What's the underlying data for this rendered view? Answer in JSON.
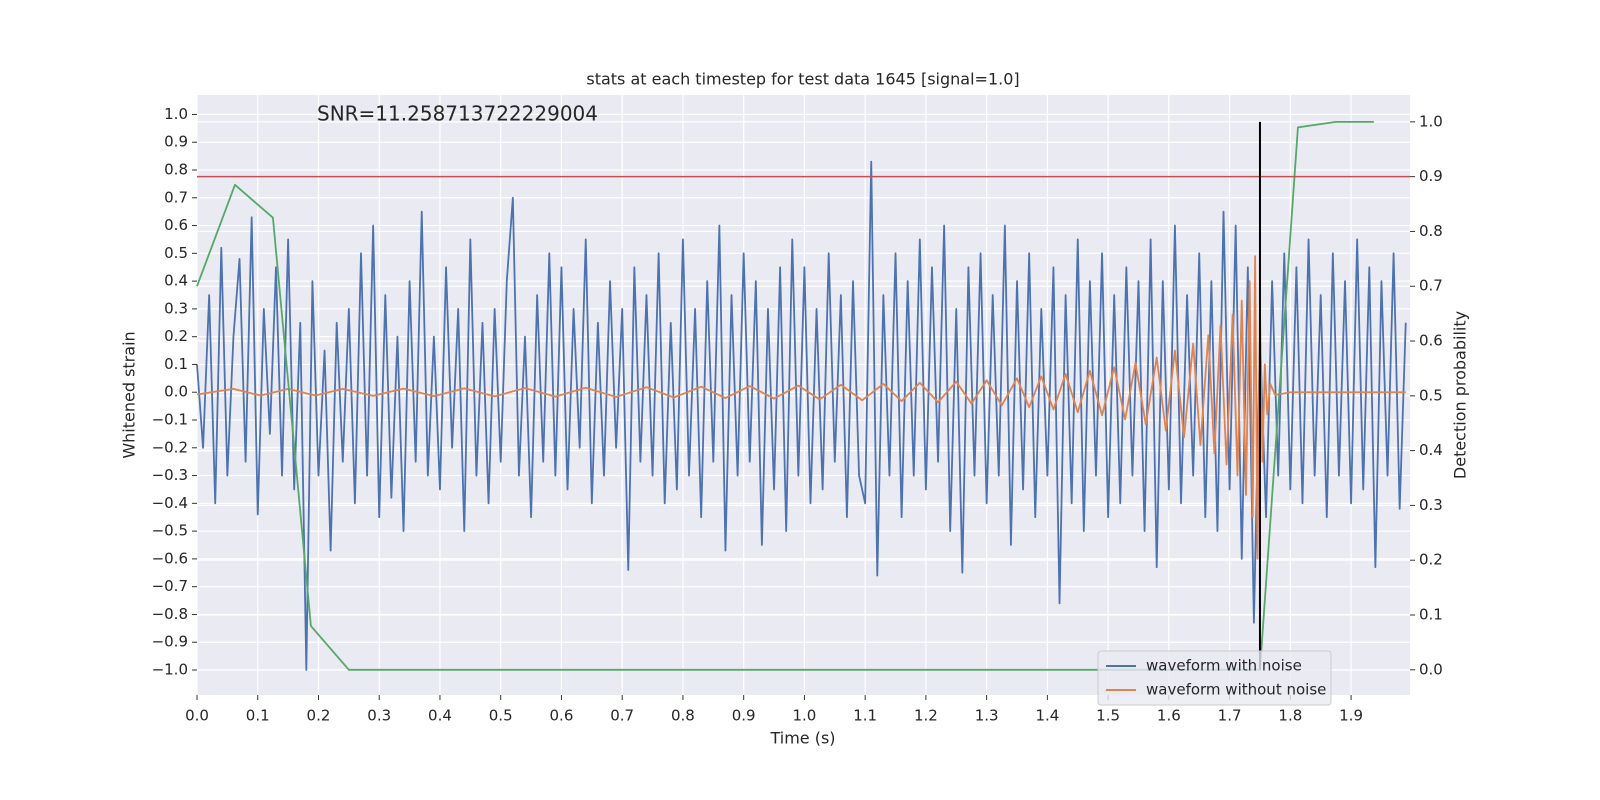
{
  "chart_data": {
    "type": "line",
    "title": "stats at each timestep for test data 1645 [signal=1.0]",
    "annotation": "SNR=11.258713722229004",
    "xlabel": "Time (s)",
    "ylabel": "Whitened strain",
    "y2label": "Detection probability",
    "grid": true,
    "legend": "lower right",
    "xlim": [
      0,
      1.997
    ],
    "ylim": [
      -1.09,
      1.07
    ],
    "y2lim": [
      -0.046,
      1.049
    ],
    "xticks": [
      {
        "value": 0,
        "label": "0.0"
      },
      {
        "value": 0.1,
        "label": "0.1"
      },
      {
        "value": 0.2,
        "label": "0.2"
      },
      {
        "value": 0.3,
        "label": "0.3"
      },
      {
        "value": 0.4,
        "label": "0.4"
      },
      {
        "value": 0.5,
        "label": "0.5"
      },
      {
        "value": 0.6,
        "label": "0.6"
      },
      {
        "value": 0.7,
        "label": "0.7"
      },
      {
        "value": 0.8,
        "label": "0.8"
      },
      {
        "value": 0.9,
        "label": "0.9"
      },
      {
        "value": 1,
        "label": "1.0"
      },
      {
        "value": 1.1,
        "label": "1.1"
      },
      {
        "value": 1.2,
        "label": "1.2"
      },
      {
        "value": 1.3,
        "label": "1.3"
      },
      {
        "value": 1.4,
        "label": "1.4"
      },
      {
        "value": 1.5,
        "label": "1.5"
      },
      {
        "value": 1.6,
        "label": "1.6"
      },
      {
        "value": 1.7,
        "label": "1.7"
      },
      {
        "value": 1.8,
        "label": "1.8"
      },
      {
        "value": 1.9,
        "label": "1.9"
      }
    ],
    "yticks": [
      {
        "value": -1,
        "label": "−1.0"
      },
      {
        "value": -0.9,
        "label": "−0.9"
      },
      {
        "value": -0.8,
        "label": "−0.8"
      },
      {
        "value": -0.7,
        "label": "−0.7"
      },
      {
        "value": -0.6,
        "label": "−0.6"
      },
      {
        "value": -0.5,
        "label": "−0.5"
      },
      {
        "value": -0.4,
        "label": "−0.4"
      },
      {
        "value": -0.3,
        "label": "−0.3"
      },
      {
        "value": -0.2,
        "label": "−0.2"
      },
      {
        "value": -0.1,
        "label": "−0.1"
      },
      {
        "value": 0,
        "label": "0.0"
      },
      {
        "value": 0.1,
        "label": "0.1"
      },
      {
        "value": 0.2,
        "label": "0.2"
      },
      {
        "value": 0.3,
        "label": "0.3"
      },
      {
        "value": 0.4,
        "label": "0.4"
      },
      {
        "value": 0.5,
        "label": "0.5"
      },
      {
        "value": 0.6,
        "label": "0.6"
      },
      {
        "value": 0.7,
        "label": "0.7"
      },
      {
        "value": 0.8,
        "label": "0.8"
      },
      {
        "value": 0.9,
        "label": "0.9"
      },
      {
        "value": 1,
        "label": "1.0"
      }
    ],
    "y2ticks": [
      {
        "value": 0,
        "label": "0.0"
      },
      {
        "value": 0.1,
        "label": "0.1"
      },
      {
        "value": 0.2,
        "label": "0.2"
      },
      {
        "value": 0.3,
        "label": "0.3"
      },
      {
        "value": 0.4,
        "label": "0.4"
      },
      {
        "value": 0.5,
        "label": "0.5"
      },
      {
        "value": 0.6,
        "label": "0.6"
      },
      {
        "value": 0.7,
        "label": "0.7"
      },
      {
        "value": 0.8,
        "label": "0.8"
      },
      {
        "value": 0.9,
        "label": "0.9"
      },
      {
        "value": 1,
        "label": "1.0"
      }
    ],
    "series": [
      {
        "name": "waveform with noise",
        "color": "#4c72b0",
        "x": [
          0,
          0.01,
          0.02,
          0.03,
          0.04,
          0.05,
          0.06,
          0.07,
          0.08,
          0.09,
          0.1,
          0.11,
          0.12,
          0.13,
          0.14,
          0.15,
          0.16,
          0.17,
          0.18,
          0.19,
          0.2,
          0.21,
          0.22,
          0.23,
          0.24,
          0.25,
          0.26,
          0.27,
          0.28,
          0.29,
          0.3,
          0.31,
          0.32,
          0.33,
          0.34,
          0.35,
          0.36,
          0.37,
          0.38,
          0.39,
          0.4,
          0.41,
          0.42,
          0.43,
          0.44,
          0.45,
          0.46,
          0.47,
          0.48,
          0.49,
          0.5,
          0.51,
          0.52,
          0.53,
          0.54,
          0.55,
          0.56,
          0.57,
          0.58,
          0.59,
          0.6,
          0.61,
          0.62,
          0.63,
          0.64,
          0.65,
          0.66,
          0.67,
          0.68,
          0.69,
          0.7,
          0.71,
          0.72,
          0.73,
          0.74,
          0.75,
          0.76,
          0.77,
          0.78,
          0.79,
          0.8,
          0.81,
          0.82,
          0.83,
          0.84,
          0.85,
          0.86,
          0.87,
          0.88,
          0.89,
          0.9,
          0.91,
          0.92,
          0.93,
          0.94,
          0.95,
          0.96,
          0.97,
          0.98,
          0.99,
          1,
          1.01,
          1.02,
          1.03,
          1.04,
          1.05,
          1.06,
          1.07,
          1.08,
          1.09,
          1.1,
          1.11,
          1.12,
          1.13,
          1.14,
          1.15,
          1.16,
          1.17,
          1.18,
          1.19,
          1.2,
          1.21,
          1.22,
          1.23,
          1.24,
          1.25,
          1.26,
          1.27,
          1.28,
          1.29,
          1.3,
          1.31,
          1.32,
          1.33,
          1.34,
          1.35,
          1.36,
          1.37,
          1.38,
          1.39,
          1.4,
          1.41,
          1.42,
          1.43,
          1.44,
          1.45,
          1.46,
          1.47,
          1.48,
          1.49,
          1.5,
          1.51,
          1.52,
          1.53,
          1.54,
          1.55,
          1.56,
          1.57,
          1.58,
          1.59,
          1.6,
          1.61,
          1.62,
          1.63,
          1.64,
          1.65,
          1.66,
          1.67,
          1.68,
          1.69,
          1.7,
          1.71,
          1.72,
          1.73,
          1.74,
          1.75,
          1.76,
          1.77,
          1.78,
          1.79,
          1.8,
          1.81,
          1.82,
          1.83,
          1.84,
          1.85,
          1.86,
          1.87,
          1.88,
          1.89,
          1.9,
          1.91,
          1.92,
          1.93,
          1.94,
          1.95,
          1.96,
          1.97,
          1.98,
          1.99
        ],
        "values": [
          0.1,
          -0.2,
          0.35,
          -0.4,
          0.52,
          -0.3,
          0.2,
          0.48,
          -0.25,
          0.63,
          -0.44,
          0.3,
          -0.15,
          0.45,
          -0.3,
          0.55,
          -0.35,
          0.25,
          -1.0,
          0.4,
          -0.3,
          0.15,
          -0.57,
          0.25,
          -0.25,
          0.3,
          -0.4,
          0.5,
          -0.3,
          0.6,
          -0.45,
          0.35,
          -0.38,
          0.2,
          -0.5,
          0.4,
          -0.25,
          0.65,
          -0.3,
          0.2,
          -0.35,
          0.45,
          -0.2,
          0.3,
          -0.5,
          0.55,
          -0.3,
          0.25,
          -0.4,
          0.3,
          -0.25,
          0.4,
          0.7,
          -0.3,
          0.2,
          -0.45,
          0.35,
          -0.25,
          0.5,
          -0.3,
          0.45,
          -0.35,
          0.3,
          -0.2,
          0.55,
          -0.4,
          0.25,
          -0.3,
          0.4,
          -0.2,
          0.3,
          -0.64,
          0.45,
          -0.25,
          0.35,
          -0.3,
          0.5,
          -0.4,
          0.25,
          -0.35,
          0.55,
          -0.3,
          0.3,
          -0.45,
          0.4,
          -0.25,
          0.6,
          -0.57,
          0.35,
          -0.3,
          0.5,
          -0.25,
          0.4,
          -0.55,
          0.3,
          -0.35,
          0.45,
          -0.5,
          0.55,
          -0.3,
          0.45,
          -0.4,
          0.3,
          -0.35,
          0.5,
          -0.25,
          0.35,
          -0.45,
          0.4,
          -0.3,
          -0.4,
          0.83,
          -0.66,
          0.35,
          -0.3,
          0.5,
          -0.45,
          0.4,
          -0.3,
          0.55,
          -0.35,
          0.45,
          -0.25,
          0.6,
          -0.5,
          0.3,
          -0.65,
          0.45,
          -0.3,
          0.5,
          -0.4,
          0.35,
          -0.3,
          0.6,
          -0.55,
          0.4,
          -0.35,
          0.5,
          -0.45,
          0.3,
          -0.3,
          0.45,
          -0.76,
          0.35,
          -0.4,
          0.55,
          -0.5,
          0.4,
          -0.3,
          0.5,
          -0.45,
          0.35,
          -0.4,
          0.45,
          -0.3,
          0.4,
          -0.5,
          0.55,
          -0.63,
          0.4,
          -0.35,
          0.6,
          -0.4,
          0.35,
          -0.3,
          0.5,
          -0.45,
          0.4,
          -0.5,
          0.65,
          -0.35,
          0.6,
          -0.6,
          0.45,
          -0.83,
          0.2,
          -0.45,
          0.4,
          -0.3,
          0.5,
          -0.35,
          0.45,
          -0.4,
          0.55,
          -0.3,
          0.35,
          -0.45,
          0.5,
          -0.3,
          0.4,
          -0.4,
          0.55,
          -0.35,
          0.45,
          -0.63,
          0.4,
          -0.3,
          0.5,
          -0.42,
          0.25
        ]
      },
      {
        "name": "waveform without noise",
        "color": "#dd8452",
        "x": [
          0,
          0.06,
          0.105,
          0.15,
          0.195,
          0.24,
          0.29,
          0.34,
          0.39,
          0.44,
          0.49,
          0.54,
          0.59,
          0.64,
          0.69,
          0.74,
          0.785,
          0.83,
          0.87,
          0.91,
          0.95,
          0.99,
          1.025,
          1.06,
          1.095,
          1.13,
          1.16,
          1.19,
          1.22,
          1.25,
          1.275,
          1.3,
          1.325,
          1.35,
          1.37,
          1.39,
          1.41,
          1.43,
          1.45,
          1.47,
          1.49,
          1.51,
          1.528,
          1.545,
          1.562,
          1.58,
          1.595,
          1.61,
          1.625,
          1.64,
          1.652,
          1.665,
          1.675,
          1.685,
          1.695,
          1.705,
          1.713,
          1.72,
          1.727,
          1.733,
          1.738,
          1.742,
          1.746,
          1.75,
          1.754,
          1.758,
          1.762,
          1.767,
          1.775,
          1.8,
          1.99
        ],
        "values": [
          -0.008,
          0.012,
          -0.012,
          0.012,
          -0.012,
          0.012,
          -0.013,
          0.013,
          -0.014,
          0.014,
          -0.015,
          0.015,
          -0.016,
          0.016,
          -0.017,
          0.018,
          -0.019,
          0.02,
          -0.021,
          0.022,
          -0.023,
          0.024,
          -0.026,
          0.027,
          -0.029,
          0.03,
          -0.032,
          0.034,
          -0.036,
          0.038,
          -0.041,
          0.043,
          -0.047,
          0.05,
          -0.054,
          0.057,
          -0.062,
          0.066,
          -0.072,
          0.077,
          -0.083,
          0.09,
          -0.098,
          0.105,
          -0.115,
          0.125,
          -0.138,
          0.15,
          -0.162,
          0.175,
          -0.19,
          0.205,
          -0.22,
          0.24,
          -0.26,
          0.28,
          -0.3,
          0.33,
          -0.37,
          0.4,
          -0.45,
          0.49,
          -0.6,
          0.3,
          -0.25,
          0.1,
          -0.08,
          0.03,
          -0.01,
          0,
          0
        ]
      },
      {
        "color": "#55a868",
        "axis": "y2",
        "x": [
          0,
          0.0625,
          0.125,
          0.1875,
          0.25,
          0.3125,
          0.375,
          0.4375,
          0.5,
          0.5625,
          0.625,
          0.6875,
          0.75,
          0.8125,
          0.875,
          0.9375,
          1,
          1.0625,
          1.125,
          1.1875,
          1.25,
          1.3125,
          1.375,
          1.4375,
          1.5,
          1.5625,
          1.625,
          1.6875,
          1.75,
          1.8125,
          1.875,
          1.9375
        ],
        "values": [
          0.7,
          0.885,
          0.825,
          0.08,
          0,
          0,
          0,
          0,
          0,
          0,
          0,
          0,
          0,
          0,
          0,
          0,
          0,
          0,
          0,
          0,
          0,
          0,
          0,
          0,
          0,
          0,
          0,
          0,
          0,
          0.99,
          1,
          1
        ]
      }
    ],
    "hline": {
      "y": 0.9,
      "axis": "y2",
      "color": "#c44e52"
    },
    "vline": {
      "x": 1.75,
      "ymin": 0,
      "ymax": 1,
      "axis": "y2",
      "color": "#000000"
    }
  }
}
